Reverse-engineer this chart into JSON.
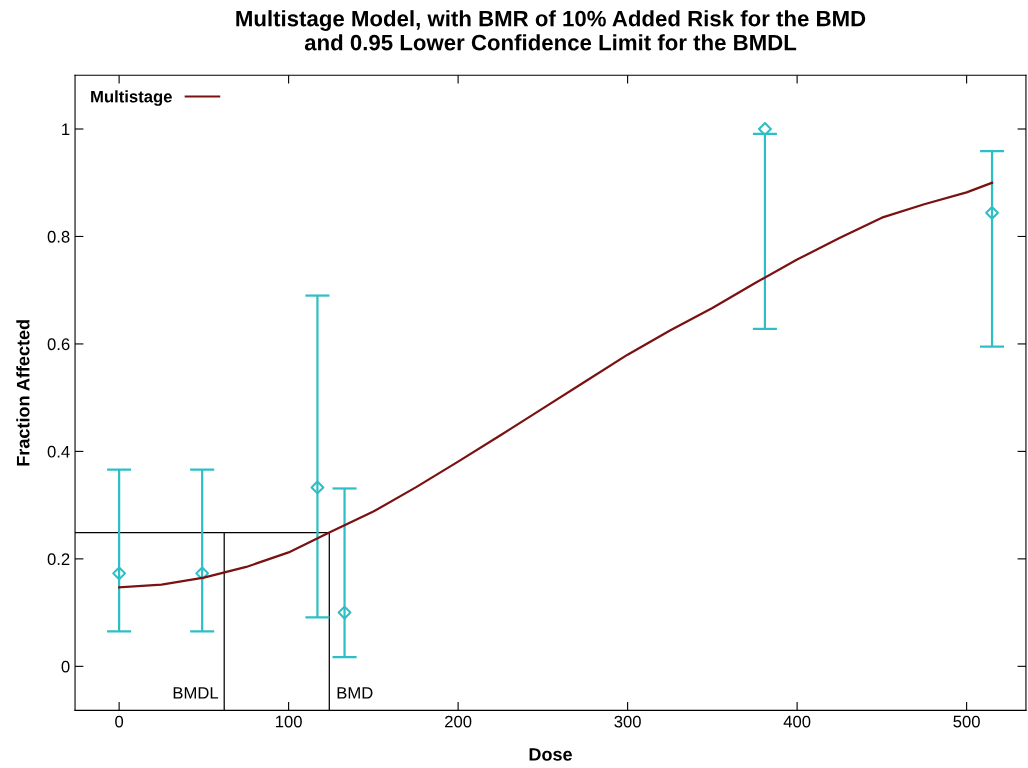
{
  "chart_data": {
    "type": "scatter",
    "title": "Multistage Model, with BMR of 10% Added Risk for the BMD\nand 0.95 Lower Confidence Limit for the BMDL",
    "xlabel": "Dose",
    "ylabel": "Fraction Affected",
    "xlim": [
      -26,
      535
    ],
    "ylim": [
      -0.082,
      1.1
    ],
    "xticks": [
      0,
      100,
      200,
      300,
      400,
      500
    ],
    "yticks": [
      0,
      0.2,
      0.4,
      0.6,
      0.8,
      1
    ],
    "grid": false,
    "legend": "top left",
    "series": [
      {
        "color": "#2ebfc6",
        "marker": "diamond",
        "x": [
          0,
          49,
          117,
          133,
          381,
          515
        ],
        "values": [
          0.173,
          0.173,
          0.333,
          0.1,
          1.0,
          0.844
        ],
        "errors": [
          [
            0.065,
            0.366
          ],
          [
            0.065,
            0.366
          ],
          [
            0.091,
            0.69
          ],
          [
            0.017,
            0.331
          ],
          [
            0.628,
            0.991
          ],
          [
            0.595,
            0.959
          ]
        ]
      },
      {
        "type": "line",
        "name": "Multistage",
        "color": "#7a1212",
        "marker": "none",
        "line_style": "solid",
        "x": [
          0,
          25,
          50,
          75,
          100,
          124,
          150,
          175,
          200,
          225,
          250,
          275,
          300,
          325,
          350,
          375,
          400,
          425,
          450,
          475,
          500,
          515
        ],
        "values": [
          0.147,
          0.152,
          0.165,
          0.185,
          0.212,
          0.249,
          0.288,
          0.333,
          0.381,
          0.43,
          0.48,
          0.53,
          0.58,
          0.625,
          0.667,
          0.713,
          0.757,
          0.797,
          0.835,
          0.86,
          0.882,
          0.9
        ]
      }
    ],
    "ref_lines": [
      {
        "axis": "y",
        "value": 0.249,
        "label": null,
        "color": "#000000"
      },
      {
        "axis": "x",
        "value": 62,
        "label": "BMDL",
        "color": "#000000"
      },
      {
        "axis": "x",
        "value": 124,
        "label": "BMD",
        "color": "#000000"
      }
    ]
  }
}
